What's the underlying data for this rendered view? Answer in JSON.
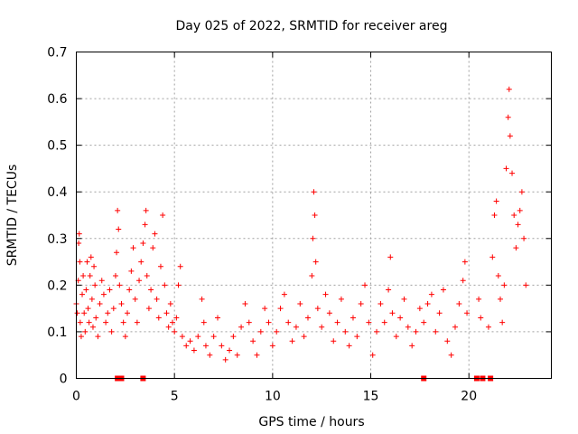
{
  "chart_data": {
    "type": "scatter",
    "title": "Day 025 of 2022, SRMTID for receiver areg",
    "xlabel": "GPS time / hours",
    "ylabel": "SRMTID / TECUs",
    "xlim": [
      0,
      24.2
    ],
    "ylim": [
      0,
      0.7
    ],
    "xticks": [
      0,
      5,
      10,
      15,
      20
    ],
    "yticks": [
      0,
      0.1,
      0.2,
      0.3,
      0.4,
      0.5,
      0.6,
      0.7
    ],
    "xtick_labels": [
      "0",
      "5",
      "10",
      "15",
      "20"
    ],
    "ytick_labels": [
      "0",
      "0.1",
      "0.2",
      "0.3",
      "0.4",
      "0.5",
      "0.6",
      "0.7"
    ],
    "grid": true,
    "marker": "+",
    "color": "#ff0000",
    "series": [
      {
        "name": "SRMTID",
        "points": [
          [
            0.0,
            0.16
          ],
          [
            0.05,
            0.14
          ],
          [
            0.1,
            0.21
          ],
          [
            0.12,
            0.29
          ],
          [
            0.15,
            0.31
          ],
          [
            0.18,
            0.25
          ],
          [
            0.2,
            0.12
          ],
          [
            0.25,
            0.09
          ],
          [
            0.3,
            0.18
          ],
          [
            0.35,
            0.22
          ],
          [
            0.4,
            0.14
          ],
          [
            0.45,
            0.1
          ],
          [
            0.5,
            0.19
          ],
          [
            0.55,
            0.25
          ],
          [
            0.6,
            0.15
          ],
          [
            0.65,
            0.12
          ],
          [
            0.7,
            0.22
          ],
          [
            0.75,
            0.26
          ],
          [
            0.8,
            0.17
          ],
          [
            0.85,
            0.11
          ],
          [
            0.9,
            0.24
          ],
          [
            0.95,
            0.2
          ],
          [
            1.0,
            0.13
          ],
          [
            1.1,
            0.09
          ],
          [
            1.2,
            0.16
          ],
          [
            1.3,
            0.21
          ],
          [
            1.4,
            0.18
          ],
          [
            1.5,
            0.12
          ],
          [
            1.6,
            0.14
          ],
          [
            1.7,
            0.19
          ],
          [
            1.8,
            0.1
          ],
          [
            1.9,
            0.15
          ],
          [
            2.0,
            0.22
          ],
          [
            2.05,
            0.27
          ],
          [
            2.1,
            0.36
          ],
          [
            2.15,
            0.32
          ],
          [
            2.2,
            0.2
          ],
          [
            2.3,
            0.16
          ],
          [
            2.4,
            0.12
          ],
          [
            2.5,
            0.09
          ],
          [
            2.6,
            0.14
          ],
          [
            2.7,
            0.19
          ],
          [
            2.8,
            0.23
          ],
          [
            2.9,
            0.28
          ],
          [
            3.0,
            0.17
          ],
          [
            3.1,
            0.12
          ],
          [
            3.2,
            0.21
          ],
          [
            3.3,
            0.25
          ],
          [
            3.4,
            0.29
          ],
          [
            3.5,
            0.33
          ],
          [
            3.55,
            0.36
          ],
          [
            3.6,
            0.22
          ],
          [
            3.7,
            0.15
          ],
          [
            3.8,
            0.19
          ],
          [
            3.9,
            0.28
          ],
          [
            4.0,
            0.31
          ],
          [
            4.1,
            0.17
          ],
          [
            4.2,
            0.13
          ],
          [
            4.3,
            0.24
          ],
          [
            4.4,
            0.35
          ],
          [
            4.5,
            0.2
          ],
          [
            4.6,
            0.14
          ],
          [
            4.7,
            0.11
          ],
          [
            4.8,
            0.16
          ],
          [
            4.9,
            0.12
          ],
          [
            5.0,
            0.1
          ],
          [
            5.1,
            0.13
          ],
          [
            5.2,
            0.2
          ],
          [
            5.3,
            0.24
          ],
          [
            5.4,
            0.09
          ],
          [
            5.6,
            0.07
          ],
          [
            5.8,
            0.08
          ],
          [
            6.0,
            0.06
          ],
          [
            6.2,
            0.09
          ],
          [
            6.4,
            0.17
          ],
          [
            6.5,
            0.12
          ],
          [
            6.6,
            0.07
          ],
          [
            6.8,
            0.05
          ],
          [
            7.0,
            0.09
          ],
          [
            7.2,
            0.13
          ],
          [
            7.4,
            0.07
          ],
          [
            7.6,
            0.04
          ],
          [
            7.8,
            0.06
          ],
          [
            8.0,
            0.09
          ],
          [
            8.2,
            0.05
          ],
          [
            8.4,
            0.11
          ],
          [
            8.6,
            0.16
          ],
          [
            8.8,
            0.12
          ],
          [
            9.0,
            0.08
          ],
          [
            9.2,
            0.05
          ],
          [
            9.4,
            0.1
          ],
          [
            9.6,
            0.15
          ],
          [
            9.8,
            0.12
          ],
          [
            10.0,
            0.07
          ],
          [
            10.2,
            0.1
          ],
          [
            10.4,
            0.15
          ],
          [
            10.6,
            0.18
          ],
          [
            10.8,
            0.12
          ],
          [
            11.0,
            0.08
          ],
          [
            11.2,
            0.11
          ],
          [
            11.4,
            0.16
          ],
          [
            11.6,
            0.09
          ],
          [
            11.8,
            0.13
          ],
          [
            12.0,
            0.22
          ],
          [
            12.05,
            0.3
          ],
          [
            12.1,
            0.4
          ],
          [
            12.15,
            0.35
          ],
          [
            12.2,
            0.25
          ],
          [
            12.3,
            0.15
          ],
          [
            12.5,
            0.11
          ],
          [
            12.7,
            0.18
          ],
          [
            12.9,
            0.14
          ],
          [
            13.1,
            0.08
          ],
          [
            13.3,
            0.12
          ],
          [
            13.5,
            0.17
          ],
          [
            13.7,
            0.1
          ],
          [
            13.9,
            0.07
          ],
          [
            14.1,
            0.13
          ],
          [
            14.3,
            0.09
          ],
          [
            14.5,
            0.16
          ],
          [
            14.7,
            0.2
          ],
          [
            14.9,
            0.12
          ],
          [
            15.1,
            0.05
          ],
          [
            15.3,
            0.1
          ],
          [
            15.5,
            0.16
          ],
          [
            15.7,
            0.12
          ],
          [
            15.9,
            0.19
          ],
          [
            16.0,
            0.26
          ],
          [
            16.1,
            0.14
          ],
          [
            16.3,
            0.09
          ],
          [
            16.5,
            0.13
          ],
          [
            16.7,
            0.17
          ],
          [
            16.9,
            0.11
          ],
          [
            17.1,
            0.07
          ],
          [
            17.3,
            0.1
          ],
          [
            17.5,
            0.15
          ],
          [
            17.7,
            0.12
          ],
          [
            17.9,
            0.16
          ],
          [
            18.1,
            0.18
          ],
          [
            18.3,
            0.1
          ],
          [
            18.5,
            0.14
          ],
          [
            18.7,
            0.19
          ],
          [
            18.9,
            0.08
          ],
          [
            19.1,
            0.05
          ],
          [
            19.3,
            0.11
          ],
          [
            19.5,
            0.16
          ],
          [
            19.7,
            0.21
          ],
          [
            19.8,
            0.25
          ],
          [
            19.9,
            0.14
          ],
          [
            20.5,
            0.17
          ],
          [
            20.6,
            0.13
          ],
          [
            21.0,
            0.11
          ],
          [
            21.2,
            0.26
          ],
          [
            21.3,
            0.35
          ],
          [
            21.4,
            0.38
          ],
          [
            21.5,
            0.22
          ],
          [
            21.6,
            0.17
          ],
          [
            21.7,
            0.12
          ],
          [
            21.8,
            0.2
          ],
          [
            21.9,
            0.45
          ],
          [
            22.0,
            0.56
          ],
          [
            22.05,
            0.62
          ],
          [
            22.1,
            0.52
          ],
          [
            22.2,
            0.44
          ],
          [
            22.3,
            0.35
          ],
          [
            22.4,
            0.28
          ],
          [
            22.5,
            0.33
          ],
          [
            22.6,
            0.36
          ],
          [
            22.7,
            0.4
          ],
          [
            22.8,
            0.3
          ],
          [
            22.9,
            0.2
          ]
        ]
      }
    ],
    "gap_markers_x": [
      2.1,
      2.3,
      3.4,
      17.7,
      20.4,
      20.7,
      21.1
    ]
  }
}
